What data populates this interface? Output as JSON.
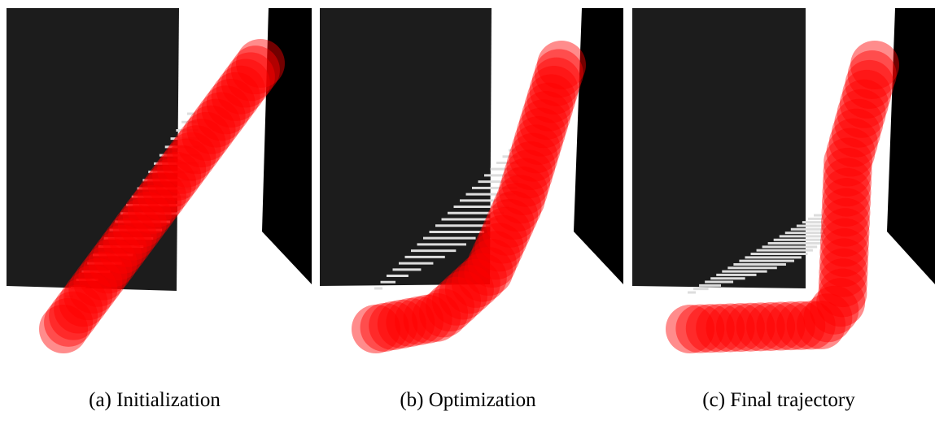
{
  "captions": [
    "(a) Initialization",
    "(b) Optimization",
    "(c) Final trajectory"
  ]
}
